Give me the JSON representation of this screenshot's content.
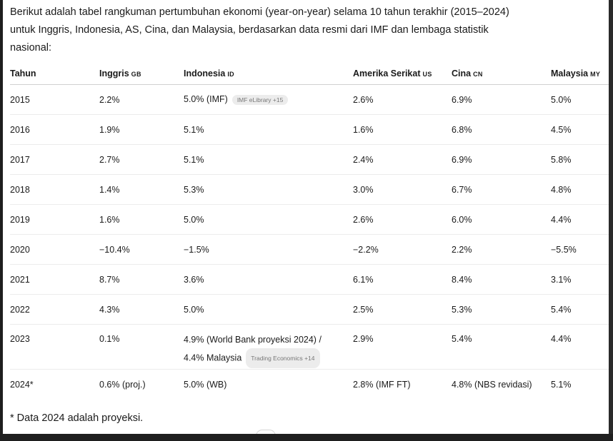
{
  "intro": {
    "line1": "Berikut adalah tabel rangkuman pertumbuhan ekonomi (year-on-year) selama 10 tahun terakhir (2015–2024)",
    "line2": "untuk Inggris, Indonesia, AS, Cina, dan Malaysia, berdasarkan data resmi dari IMF dan lembaga statistik",
    "line3": "nasional:"
  },
  "headers": [
    {
      "label": "Tahun",
      "code": ""
    },
    {
      "label": "Inggris",
      "code": "GB"
    },
    {
      "label": "Indonesia",
      "code": "ID"
    },
    {
      "label": "Amerika Serikat",
      "code": "US"
    },
    {
      "label": "Cina",
      "code": "CN"
    },
    {
      "label": "Malaysia",
      "code": "MY"
    }
  ],
  "rows": [
    {
      "year": "2015",
      "gb": "2.2%",
      "id": "5.0% (IMF)",
      "id_chip": "IMF eLibrary +15",
      "us": "2.6%",
      "cn": "6.9%",
      "my": "5.0%"
    },
    {
      "year": "2016",
      "gb": "1.9%",
      "id": "5.1%",
      "us": "1.6%",
      "cn": "6.8%",
      "my": "4.5%"
    },
    {
      "year": "2017",
      "gb": "2.7%",
      "id": "5.1%",
      "us": "2.4%",
      "cn": "6.9%",
      "my": "5.8%"
    },
    {
      "year": "2018",
      "gb": "1.4%",
      "id": "5.3%",
      "us": "3.0%",
      "cn": "6.7%",
      "my": "4.8%"
    },
    {
      "year": "2019",
      "gb": "1.6%",
      "id": "5.0%",
      "us": "2.6%",
      "cn": "6.0%",
      "my": "4.4%"
    },
    {
      "year": "2020",
      "gb": "−10.4%",
      "id": "−1.5%",
      "us": "−2.2%",
      "cn": "2.2%",
      "my": "−5.5%"
    },
    {
      "year": "2021",
      "gb": "8.7%",
      "id": "3.6%",
      "us": "6.1%",
      "cn": "8.4%",
      "my": "3.1%"
    },
    {
      "year": "2022",
      "gb": "4.3%",
      "id": "5.0%",
      "us": "2.5%",
      "cn": "5.3%",
      "my": "5.4%"
    },
    {
      "year": "2023",
      "gb": "0.1%",
      "id": "4.9% (World Bank proyeksi 2024) /",
      "id_line2": "4.4% Malaysia",
      "id_chip": "Trading Economics +14",
      "us": "2.9%",
      "cn": "5.4%",
      "my": "4.4%"
    },
    {
      "year": "2024*",
      "gb": "0.6% (proj.)",
      "id": "5.0% (WB)",
      "us": "2.8% (IMF FT)",
      "cn": "4.8% (NBS revidasi)",
      "my": "5.1%"
    }
  ],
  "footnote": "* Data 2024 adalah proyeksi."
}
